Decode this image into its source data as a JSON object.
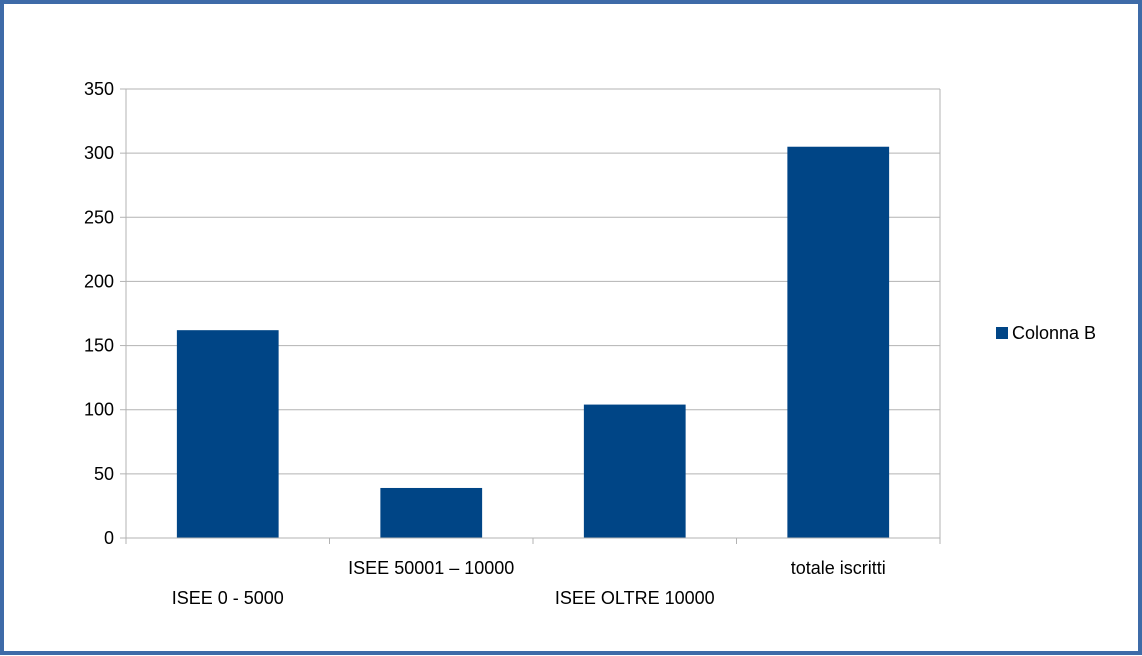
{
  "chart_data": {
    "type": "bar",
    "title": "",
    "xlabel": "",
    "ylabel": "",
    "categories": [
      "ISEE  0 -  5000",
      "ISEE 50001 – 10000",
      "ISEE OLTRE 10000",
      "totale iscritti"
    ],
    "series": [
      {
        "name": "Colonna B",
        "values": [
          162,
          39,
          104,
          305
        ],
        "color": "#004586"
      }
    ],
    "ylim": [
      0,
      350
    ],
    "yticks": [
      0,
      50,
      100,
      150,
      200,
      250,
      300,
      350
    ],
    "grid": true,
    "legend_position": "right"
  }
}
